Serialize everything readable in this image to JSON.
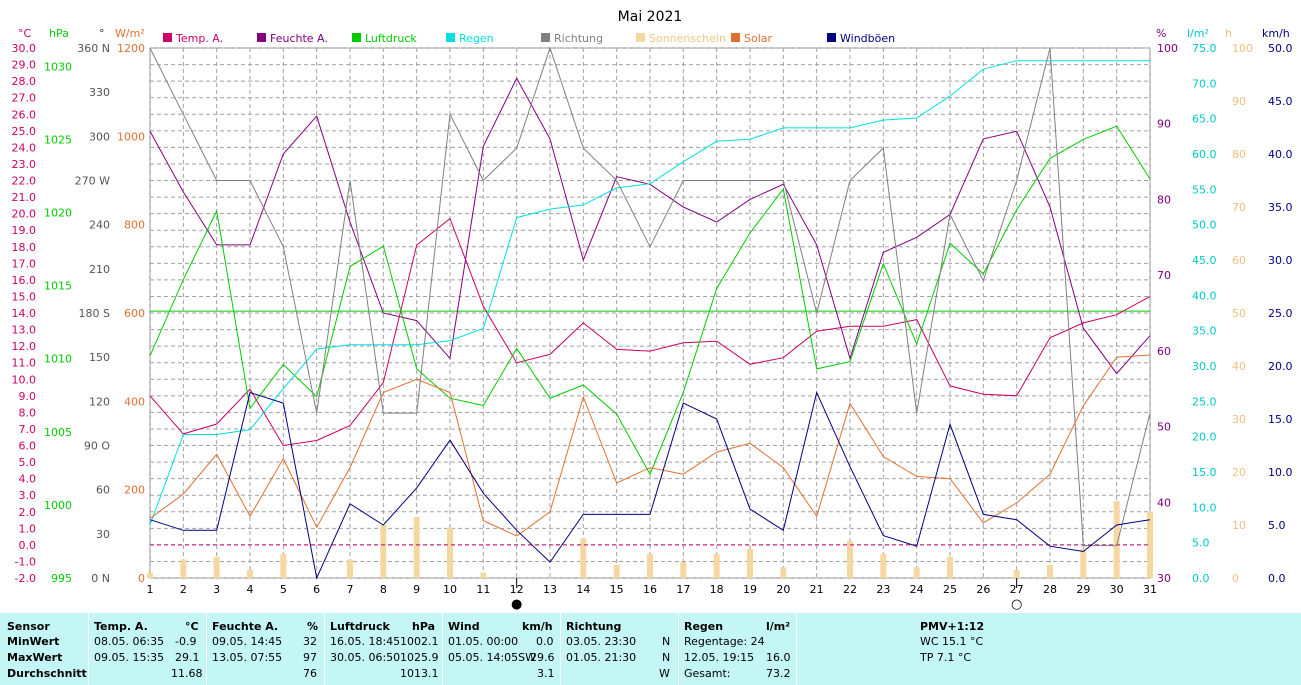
{
  "chart_data": {
    "type": "line",
    "title": "Mai 2021",
    "x": [
      1,
      2,
      3,
      4,
      5,
      6,
      7,
      8,
      9,
      10,
      11,
      12,
      13,
      14,
      15,
      16,
      17,
      18,
      19,
      20,
      21,
      22,
      23,
      24,
      25,
      26,
      27,
      28,
      29,
      30,
      31
    ],
    "xlim": [
      1,
      31
    ],
    "grid": true,
    "legend": "top",
    "axes": {
      "temp": {
        "unit": "°C",
        "label": "°C",
        "range": [
          -2.0,
          30.0
        ],
        "ticks": [
          "-2.0",
          "-1.0",
          "0.0",
          "1.0",
          "2.0",
          "3.0",
          "4.0",
          "5.0",
          "6.0",
          "7.0",
          "8.0",
          "9.0",
          "10.0",
          "11.0",
          "12.0",
          "13.0",
          "14.0",
          "15.0",
          "16.0",
          "17.0",
          "18.0",
          "19.0",
          "20.0",
          "21.0",
          "22.0",
          "23.0",
          "24.0",
          "25.0",
          "26.0",
          "27.0",
          "28.0",
          "29.0",
          "30.0"
        ],
        "color": "#cc0066"
      },
      "press": {
        "unit": "hPa",
        "label": "hPa",
        "range": [
          995,
          1031.25
        ],
        "ticks": [
          "995",
          "1000",
          "1005",
          "1010",
          "1015",
          "1020",
          "1025",
          "1030"
        ],
        "color": "#00cc00"
      },
      "dir": {
        "unit": "°",
        "label": "°",
        "range": [
          0,
          360
        ],
        "ticks": [
          "0 N",
          "30",
          "60",
          "90 O",
          "120",
          "150",
          "180 S",
          "210",
          "240",
          "270 W",
          "300",
          "330",
          "360 N"
        ],
        "color": "#555555"
      },
      "solar": {
        "unit": "W/m²",
        "label": "W/m²",
        "range": [
          0,
          1200
        ],
        "ticks": [
          "0",
          "200",
          "400",
          "600",
          "800",
          "1000",
          "1200"
        ],
        "color": "#e07030"
      },
      "hum": {
        "unit": "%",
        "label": "%",
        "range": [
          30,
          100
        ],
        "ticks": [
          "30",
          "40",
          "50",
          "60",
          "70",
          "80",
          "90",
          "100"
        ],
        "color": "#800080"
      },
      "rain": {
        "unit": "l/m²",
        "label": "l/m²",
        "range": [
          0,
          75
        ],
        "ticks": [
          "0.0",
          "5.0",
          "10.0",
          "15.0",
          "20.0",
          "25.0",
          "30.0",
          "35.0",
          "40.0",
          "45.0",
          "50.0",
          "55.0",
          "60.0",
          "65.0",
          "70.0",
          "75.0"
        ],
        "color": "#00c8c8"
      },
      "sun": {
        "unit": "h",
        "label": "h",
        "range": [
          0,
          100
        ],
        "ticks": [
          "0",
          "10",
          "20",
          "30",
          "40",
          "50",
          "60",
          "70",
          "80",
          "90",
          "100"
        ],
        "color": "#f0c080"
      },
      "wind": {
        "unit": "km/h",
        "label": "km/h",
        "range": [
          0,
          50
        ],
        "ticks": [
          "0.0",
          "5.0",
          "10.0",
          "15.0",
          "20.0",
          "25.0",
          "30.0",
          "35.0",
          "40.0",
          "45.0",
          "50.0"
        ],
        "color": "#000080"
      }
    },
    "series": [
      {
        "name": "Temp. A.",
        "axis": "temp",
        "color": "#cc0066",
        "values": [
          9.0,
          6.7,
          7.3,
          9.4,
          6.0,
          6.3,
          7.2,
          9.8,
          18.1,
          19.7,
          14.4,
          11.0,
          11.5,
          13.4,
          11.8,
          11.7,
          12.2,
          12.3,
          10.9,
          11.3,
          12.9,
          13.2,
          13.2,
          13.6,
          9.6,
          9.1,
          9.0,
          12.5,
          13.4,
          13.9,
          15.0
        ]
      },
      {
        "name": "Feuchte A.",
        "axis": "hum",
        "color": "#800080",
        "values": [
          89,
          81,
          74,
          74,
          86,
          91,
          77,
          65,
          64,
          59,
          87,
          96,
          88,
          72,
          83,
          82,
          79,
          77,
          80,
          82,
          74,
          59,
          73,
          75,
          78,
          88,
          89,
          79,
          63,
          57,
          62
        ]
      },
      {
        "name": "Luftdruck",
        "axis": "press",
        "color": "#00cc00",
        "values": [
          1010.2,
          1015.4,
          1020.1,
          1006.6,
          1009.6,
          1007.4,
          1016.3,
          1017.7,
          1009.3,
          1007.3,
          1006.8,
          1010.7,
          1007.3,
          1008.2,
          1006.2,
          1002.1,
          1007.7,
          1014.8,
          1018.6,
          1021.6,
          1009.3,
          1009.8,
          1016.5,
          1011.0,
          1017.9,
          1015.8,
          1020.2,
          1023.7,
          1025.0,
          1025.9,
          1022.3
        ]
      },
      {
        "name": "Regen",
        "axis": "rain",
        "color": "#00e0e0",
        "values": [
          7.5,
          20.3,
          20.3,
          21.0,
          26.8,
          32.4,
          33.0,
          33.0,
          33.0,
          33.6,
          35.3,
          51.0,
          52.2,
          52.8,
          55.2,
          55.8,
          58.9,
          61.8,
          62.1,
          63.7,
          63.7,
          63.7,
          64.8,
          65.1,
          68.2,
          72.0,
          73.2,
          73.2,
          73.2,
          73.2,
          73.2
        ]
      },
      {
        "name": "Richtung",
        "axis": "dir",
        "color": "#808080",
        "values": [
          360,
          315,
          270,
          270,
          225,
          112,
          270,
          112,
          112,
          315,
          270,
          292,
          360,
          292,
          270,
          225,
          270,
          270,
          270,
          270,
          180,
          270,
          292,
          112,
          247,
          202,
          270,
          360,
          22,
          22,
          112
        ]
      },
      {
        "name": "Sonnenschein",
        "axis": "sun",
        "color": "#f5d7a0",
        "values": [
          1,
          3.5,
          4,
          1.5,
          4.5,
          0,
          3.5,
          10,
          11.5,
          9.5,
          1,
          0,
          0,
          7.5,
          2.5,
          4.5,
          3,
          4.5,
          5.5,
          2,
          0,
          7,
          4.5,
          2,
          4,
          0,
          1.5,
          2.5,
          5.5,
          14.5,
          12.5
        ]
      },
      {
        "name": "Solar",
        "axis": "solar",
        "color": "#e07030",
        "values": [
          135,
          190,
          280,
          140,
          270,
          115,
          250,
          420,
          450,
          420,
          130,
          95,
          150,
          410,
          215,
          250,
          235,
          285,
          305,
          250,
          140,
          395,
          275,
          230,
          225,
          125,
          170,
          235,
          390,
          500,
          505
        ]
      },
      {
        "name": "Windböen",
        "axis": "wind",
        "color": "#000080",
        "values": [
          5.5,
          4.5,
          4.5,
          17.5,
          16.5,
          0,
          7.0,
          5.0,
          8.5,
          13.0,
          8.0,
          4.5,
          1.5,
          6.0,
          6.0,
          6.0,
          16.5,
          15.0,
          6.5,
          4.5,
          17.5,
          10.5,
          4.0,
          3.0,
          14.5,
          6.0,
          5.5,
          3.0,
          2.5,
          5.0,
          5.5
        ]
      }
    ],
    "reference_lines": [
      {
        "axis": "temp",
        "value": 0.0,
        "color": "#cc0066",
        "style": "dashed"
      },
      {
        "axis": "press",
        "value": 1013.25,
        "color": "#00cc00",
        "style": "solid"
      }
    ],
    "moon_markers": [
      {
        "day": 12,
        "phase": "new",
        "symbol": "●"
      },
      {
        "day": 27,
        "phase": "full",
        "symbol": "○"
      }
    ]
  },
  "stats_table": {
    "headers": {
      "sensor": "Sensor",
      "temp": "Temp. A.",
      "temp_unit": "°C",
      "hum": "Feuchte A.",
      "hum_unit": "%",
      "press": "Luftdruck",
      "press_unit": "hPa",
      "wind": "Wind",
      "wind_unit": "km/h",
      "dir": "Richtung",
      "rain": "Regen",
      "rain_unit": "l/m²",
      "pmv": "PMV+1:12"
    },
    "rows": {
      "min": "MinWert",
      "max": "MaxWert",
      "avg": "Durchschnitt"
    },
    "temp": {
      "min_time": "08.05.  06:35",
      "min_val": "-0.9",
      "max_time": "09.05.  15:35",
      "max_val": "29.1",
      "avg": "11.68"
    },
    "hum": {
      "min_time": "09.05.  14:45",
      "min_val": "32",
      "max_time": "13.05.  07:55",
      "max_val": "97",
      "avg": "76"
    },
    "press": {
      "min_time": "16.05.  18:45",
      "min_val": "1002.1",
      "max_time": "30.05.  06:50",
      "max_val": "1025.9",
      "avg": "1013.1"
    },
    "wind": {
      "min_time": "01.05.  00:00",
      "min_val": "0.0",
      "max_time": "05.05.  14:05SW",
      "max_val": "29.6",
      "avg": "3.1"
    },
    "dir": {
      "min_time": "03.05.  23:30",
      "min_val": "N",
      "max_time": "01.05.  21:30",
      "max_val": "N",
      "avg": "W"
    },
    "rain": {
      "days_label": "Regentage: 24",
      "max_time": "12.05.  19:15",
      "max_val": "16.0",
      "total_label": "Gesamt:",
      "total_val": "73.2"
    },
    "pmv": {
      "wc": "WC 15.1 °C",
      "tp": "TP 7.1 °C"
    }
  }
}
